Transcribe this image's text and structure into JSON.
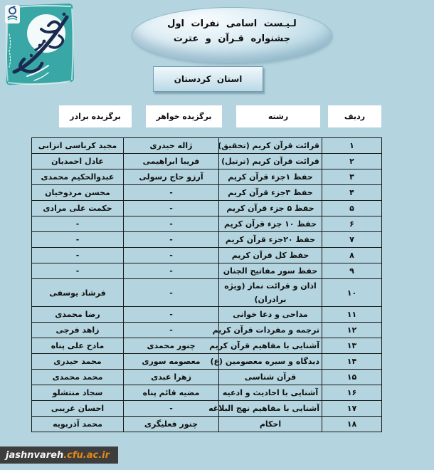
{
  "page": {
    "background": "#b4d5df"
  },
  "logo": {
    "teal": "#38a7a5",
    "navy": "#1b2a50",
    "label": "cultural-festivals-calligraphy-logo"
  },
  "title": {
    "line1": "لـیـست اسامی نفرات اول",
    "line2": "جشنواره قـرآن و عترت"
  },
  "province_label": "استان كردستان",
  "table": {
    "headers": {
      "radif": "ردیف",
      "reshte": "رشته",
      "sister": "برگزیده خواهر",
      "brother": "برگزیده برادر"
    },
    "rows": [
      {
        "no": "۱",
        "field": "قرائت قرآن کریم (تحقیق)",
        "sister": "ژاله حیدری",
        "brother": "مجید کرباسی انزابی"
      },
      {
        "no": "۲",
        "field": "قرائت قرآن کریم (ترتیل)",
        "sister": "فریبا ابراهیمی",
        "brother": "عادل احمدیان"
      },
      {
        "no": "۳",
        "field": "حفظ ۱جزء قرآن کریم",
        "sister": "آرزو حاج رسولی",
        "brother": "عبدوالحکیم محمدی"
      },
      {
        "no": "۴",
        "field": "حفظ ۳جزء قرآن کریم",
        "sister": "-",
        "brother": "محسن مردوخیان"
      },
      {
        "no": "۵",
        "field": "حفظ ۵ جزء قرآن کریم",
        "sister": "-",
        "brother": "حکمت علی مرادی"
      },
      {
        "no": "۶",
        "field": "حفظ ۱۰ جزء قرآن کریم",
        "sister": "-",
        "brother": "-"
      },
      {
        "no": "۷",
        "field": "حفظ ۲۰جزء قرآن کریم",
        "sister": "-",
        "brother": "-"
      },
      {
        "no": "۸",
        "field": "حفظ کل قرآن کریم",
        "sister": "-",
        "brother": "-"
      },
      {
        "no": "۹",
        "field": "حفظ سور مفاتیح الجنان",
        "sister": "-",
        "brother": "-"
      },
      {
        "no": "۱۰",
        "field": "اذان و قرائت نماز (ویژه",
        "field2": "برادران)",
        "sister": "-",
        "brother": "فرشاد یوسفی"
      },
      {
        "no": "۱۱",
        "field": "مداحی و دعا خوانی",
        "sister": "-",
        "brother": "رضا محمدی"
      },
      {
        "no": "۱۲",
        "field": "ترجمه و مفردات قرآن کریم",
        "sister": "-",
        "brother": "زاهد فرجی"
      },
      {
        "no": "۱۳",
        "field": "آشنایی با مفاهیم قرآن کریم",
        "sister": "چنور محمدی",
        "brother": "مادح علی پناه"
      },
      {
        "no": "۱۴",
        "field": "دیدگاه و سیره معصومین (ع)",
        "sister": "معصومه سوری",
        "brother": "محمد حیدری"
      },
      {
        "no": "۱۵",
        "field": "قرآن شناسی",
        "sister": "زهرا عبدی",
        "brother": "محمد محمدی"
      },
      {
        "no": "۱۶",
        "field": "آشنایی با احادیث و ادعیه",
        "sister": "مضیه قائم پناه",
        "brother": "سجاد منتشلو"
      },
      {
        "no": "۱۷",
        "field": "آشنایی با مفاهیم نهج البلاغه",
        "sister": "-",
        "brother": "احسان غریبی"
      },
      {
        "no": "۱۸",
        "field": "احکام",
        "sister": "چنور فعلیگری",
        "brother": "محمد آذربویه"
      }
    ]
  },
  "footer": {
    "site_name": "jashnvareh",
    "site_domain": ".cfu.ac.ir",
    "badge_bg": "#3d3d3d",
    "domain_color": "#e58817"
  }
}
